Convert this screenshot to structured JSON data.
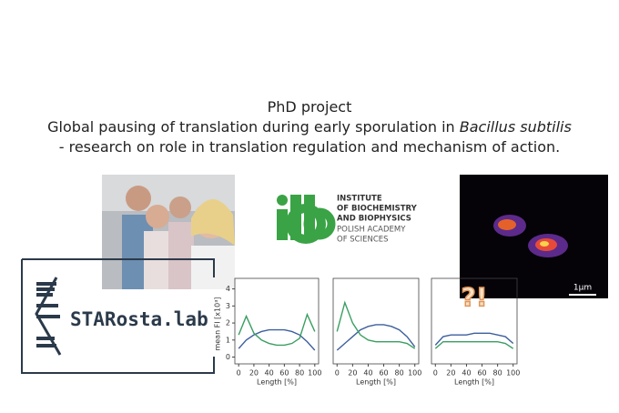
{
  "heading": {
    "line1": "PhD project",
    "line2": "Global pausing of translation during early sporulation in ",
    "line2_italic": "Bacillus subtilis",
    "line3": "- research on role in translation regulation and mechanism of action."
  },
  "institute": {
    "lines": [
      "INSTITUTE",
      "OF BIOCHEMISTRY",
      "AND BIOPHYSICS",
      "POLISH ACADEMY",
      "OF SCIENCES"
    ]
  },
  "microscopy": {
    "scale_label": "1μm"
  },
  "lab_logo": {
    "text": "STARosta.lab"
  },
  "chart_data": [
    {
      "type": "line",
      "x": [
        0,
        10,
        20,
        30,
        40,
        50,
        60,
        70,
        80,
        90,
        100
      ],
      "xlim": [
        -5,
        105
      ],
      "xticks": [
        0,
        20,
        40,
        60,
        80,
        100
      ],
      "ylim": [
        -0.4,
        4.3
      ],
      "yticks": [
        0,
        1,
        2,
        3,
        4
      ],
      "xlabel": "Length [%]",
      "ylabel": "mean FI [x10³]",
      "series": [
        {
          "color": "#3d5f9e",
          "values": [
            0.5,
            1.0,
            1.3,
            1.5,
            1.6,
            1.6,
            1.6,
            1.5,
            1.3,
            0.9,
            0.4
          ]
        },
        {
          "color": "#3a9e62",
          "values": [
            1.3,
            2.4,
            1.4,
            1.0,
            0.8,
            0.7,
            0.7,
            0.8,
            1.1,
            2.5,
            1.5
          ]
        }
      ]
    },
    {
      "type": "line",
      "x": [
        0,
        10,
        20,
        30,
        40,
        50,
        60,
        70,
        80,
        90,
        100
      ],
      "xlim": [
        -5,
        105
      ],
      "xticks": [
        0,
        20,
        40,
        60,
        80,
        100
      ],
      "ylim": [
        -0.4,
        4.3
      ],
      "xlabel": "Length [%]",
      "series": [
        {
          "color": "#3d5f9e",
          "values": [
            0.4,
            0.8,
            1.2,
            1.6,
            1.8,
            1.9,
            1.9,
            1.8,
            1.6,
            1.2,
            0.6
          ]
        },
        {
          "color": "#3a9e62",
          "values": [
            1.5,
            3.2,
            2.0,
            1.3,
            1.0,
            0.9,
            0.9,
            0.9,
            0.9,
            0.8,
            0.5
          ]
        }
      ]
    },
    {
      "type": "line",
      "x": [
        0,
        10,
        20,
        30,
        40,
        50,
        60,
        70,
        80,
        90,
        100
      ],
      "xlim": [
        -5,
        105
      ],
      "xticks": [
        0,
        20,
        40,
        60,
        80,
        100
      ],
      "ylim": [
        -0.4,
        4.3
      ],
      "xlabel": "Length [%]",
      "annotation": "?!",
      "series": [
        {
          "color": "#3d5f9e",
          "values": [
            0.7,
            1.2,
            1.3,
            1.3,
            1.3,
            1.4,
            1.4,
            1.4,
            1.3,
            1.2,
            0.8
          ]
        },
        {
          "color": "#3a9e62",
          "values": [
            0.5,
            0.9,
            0.9,
            0.9,
            0.9,
            0.9,
            0.9,
            0.9,
            0.9,
            0.8,
            0.5
          ]
        }
      ]
    }
  ]
}
